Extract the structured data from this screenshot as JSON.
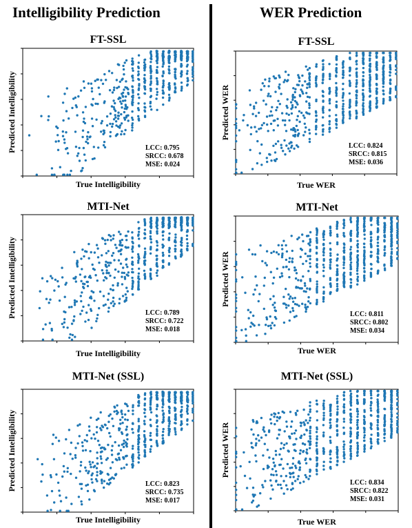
{
  "columns": {
    "left_title": "Intelligibility Prediction",
    "right_title": "WER Prediction"
  },
  "colors": {
    "points": "#1f77b4",
    "axes": "#000000"
  },
  "chart_data": [
    {
      "id": "ft-ssl-intelligibility",
      "type": "scatter",
      "title": "FT-SSL",
      "xlabel": "True Intelligibility",
      "ylabel": "Predicted Intelligibility",
      "metrics": [
        "LCC: 0.795",
        "SRCC: 0.678",
        "MSE: 0.024"
      ],
      "lcc": 0.795,
      "mse": 0.024,
      "seed": 11,
      "n_points": 620,
      "xlim": [
        0,
        1
      ],
      "ylim": [
        0,
        1
      ]
    },
    {
      "id": "ft-ssl-wer",
      "type": "scatter",
      "title": "FT-SSL",
      "xlabel": "True WER",
      "ylabel": "Predicted WER",
      "metrics": [
        "LCC: 0.824",
        "SRCC: 0.815",
        "MSE: 0.036"
      ],
      "lcc": 0.824,
      "mse": 0.036,
      "seed": 23,
      "n_points": 720,
      "xlim": [
        0,
        1
      ],
      "ylim": [
        0,
        1
      ]
    },
    {
      "id": "mti-net-intelligibility",
      "type": "scatter",
      "title": "MTI-Net",
      "xlabel": "True Intelligibility",
      "ylabel": "Predicted Intelligibility",
      "metrics": [
        "LCC: 0.789",
        "SRCC: 0.722",
        "MSE: 0.018"
      ],
      "lcc": 0.789,
      "mse": 0.018,
      "seed": 37,
      "n_points": 620,
      "xlim": [
        0,
        1
      ],
      "ylim": [
        0,
        1
      ]
    },
    {
      "id": "mti-net-wer",
      "type": "scatter",
      "title": "MTI-Net",
      "xlabel": "True WER",
      "ylabel": "Predicted WER",
      "metrics": [
        "LCC: 0.811",
        "SRCC: 0.802",
        "MSE: 0.034"
      ],
      "lcc": 0.811,
      "mse": 0.034,
      "seed": 41,
      "n_points": 720,
      "xlim": [
        0,
        1
      ],
      "ylim": [
        0,
        1
      ]
    },
    {
      "id": "mti-net-ssl-intelligibility",
      "type": "scatter",
      "title": "MTI-Net (SSL)",
      "xlabel": "True Intelligibility",
      "ylabel": "Predicted Intelligibility",
      "metrics": [
        "LCC: 0.823",
        "SRCC: 0.735",
        "MSE: 0.017"
      ],
      "lcc": 0.823,
      "mse": 0.017,
      "seed": 53,
      "n_points": 620,
      "xlim": [
        0,
        1
      ],
      "ylim": [
        0,
        1
      ]
    },
    {
      "id": "mti-net-ssl-wer",
      "type": "scatter",
      "title": "MTI-Net (SSL)",
      "xlabel": "True WER",
      "ylabel": "Predicted WER",
      "metrics": [
        "LCC: 0.834",
        "SRCC: 0.822",
        "MSE: 0.031"
      ],
      "lcc": 0.834,
      "mse": 0.031,
      "seed": 67,
      "n_points": 720,
      "xlim": [
        0,
        1
      ],
      "ylim": [
        0,
        1
      ]
    }
  ]
}
